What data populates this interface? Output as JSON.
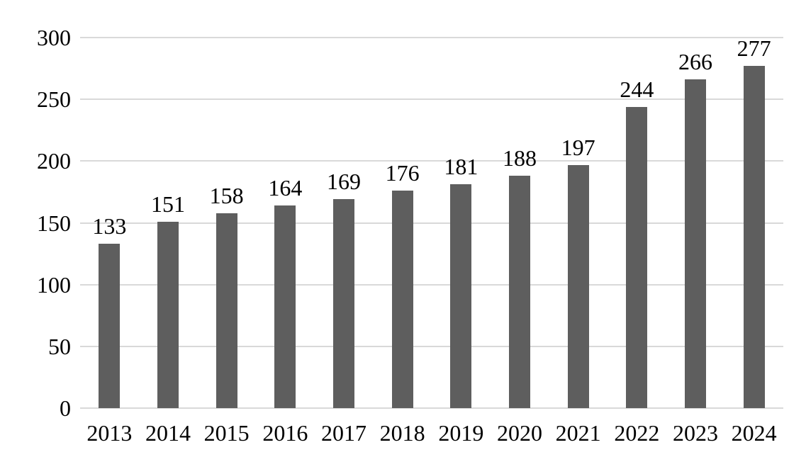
{
  "chart_data": {
    "type": "bar",
    "categories": [
      "2013",
      "2014",
      "2015",
      "2016",
      "2017",
      "2018",
      "2019",
      "2020",
      "2021",
      "2022",
      "2023",
      "2024"
    ],
    "values": [
      133,
      151,
      158,
      164,
      169,
      176,
      181,
      188,
      197,
      244,
      266,
      277
    ],
    "title": "",
    "xlabel": "",
    "ylabel": "",
    "ylim": [
      0,
      300
    ],
    "yticks": [
      0,
      50,
      100,
      150,
      200,
      250,
      300
    ],
    "grid": true,
    "legend": false,
    "data_labels": true,
    "colors": {
      "bar": "#5e5e5e",
      "gridline": "#d9d9d9",
      "text": "#000000",
      "background": "#ffffff"
    }
  }
}
